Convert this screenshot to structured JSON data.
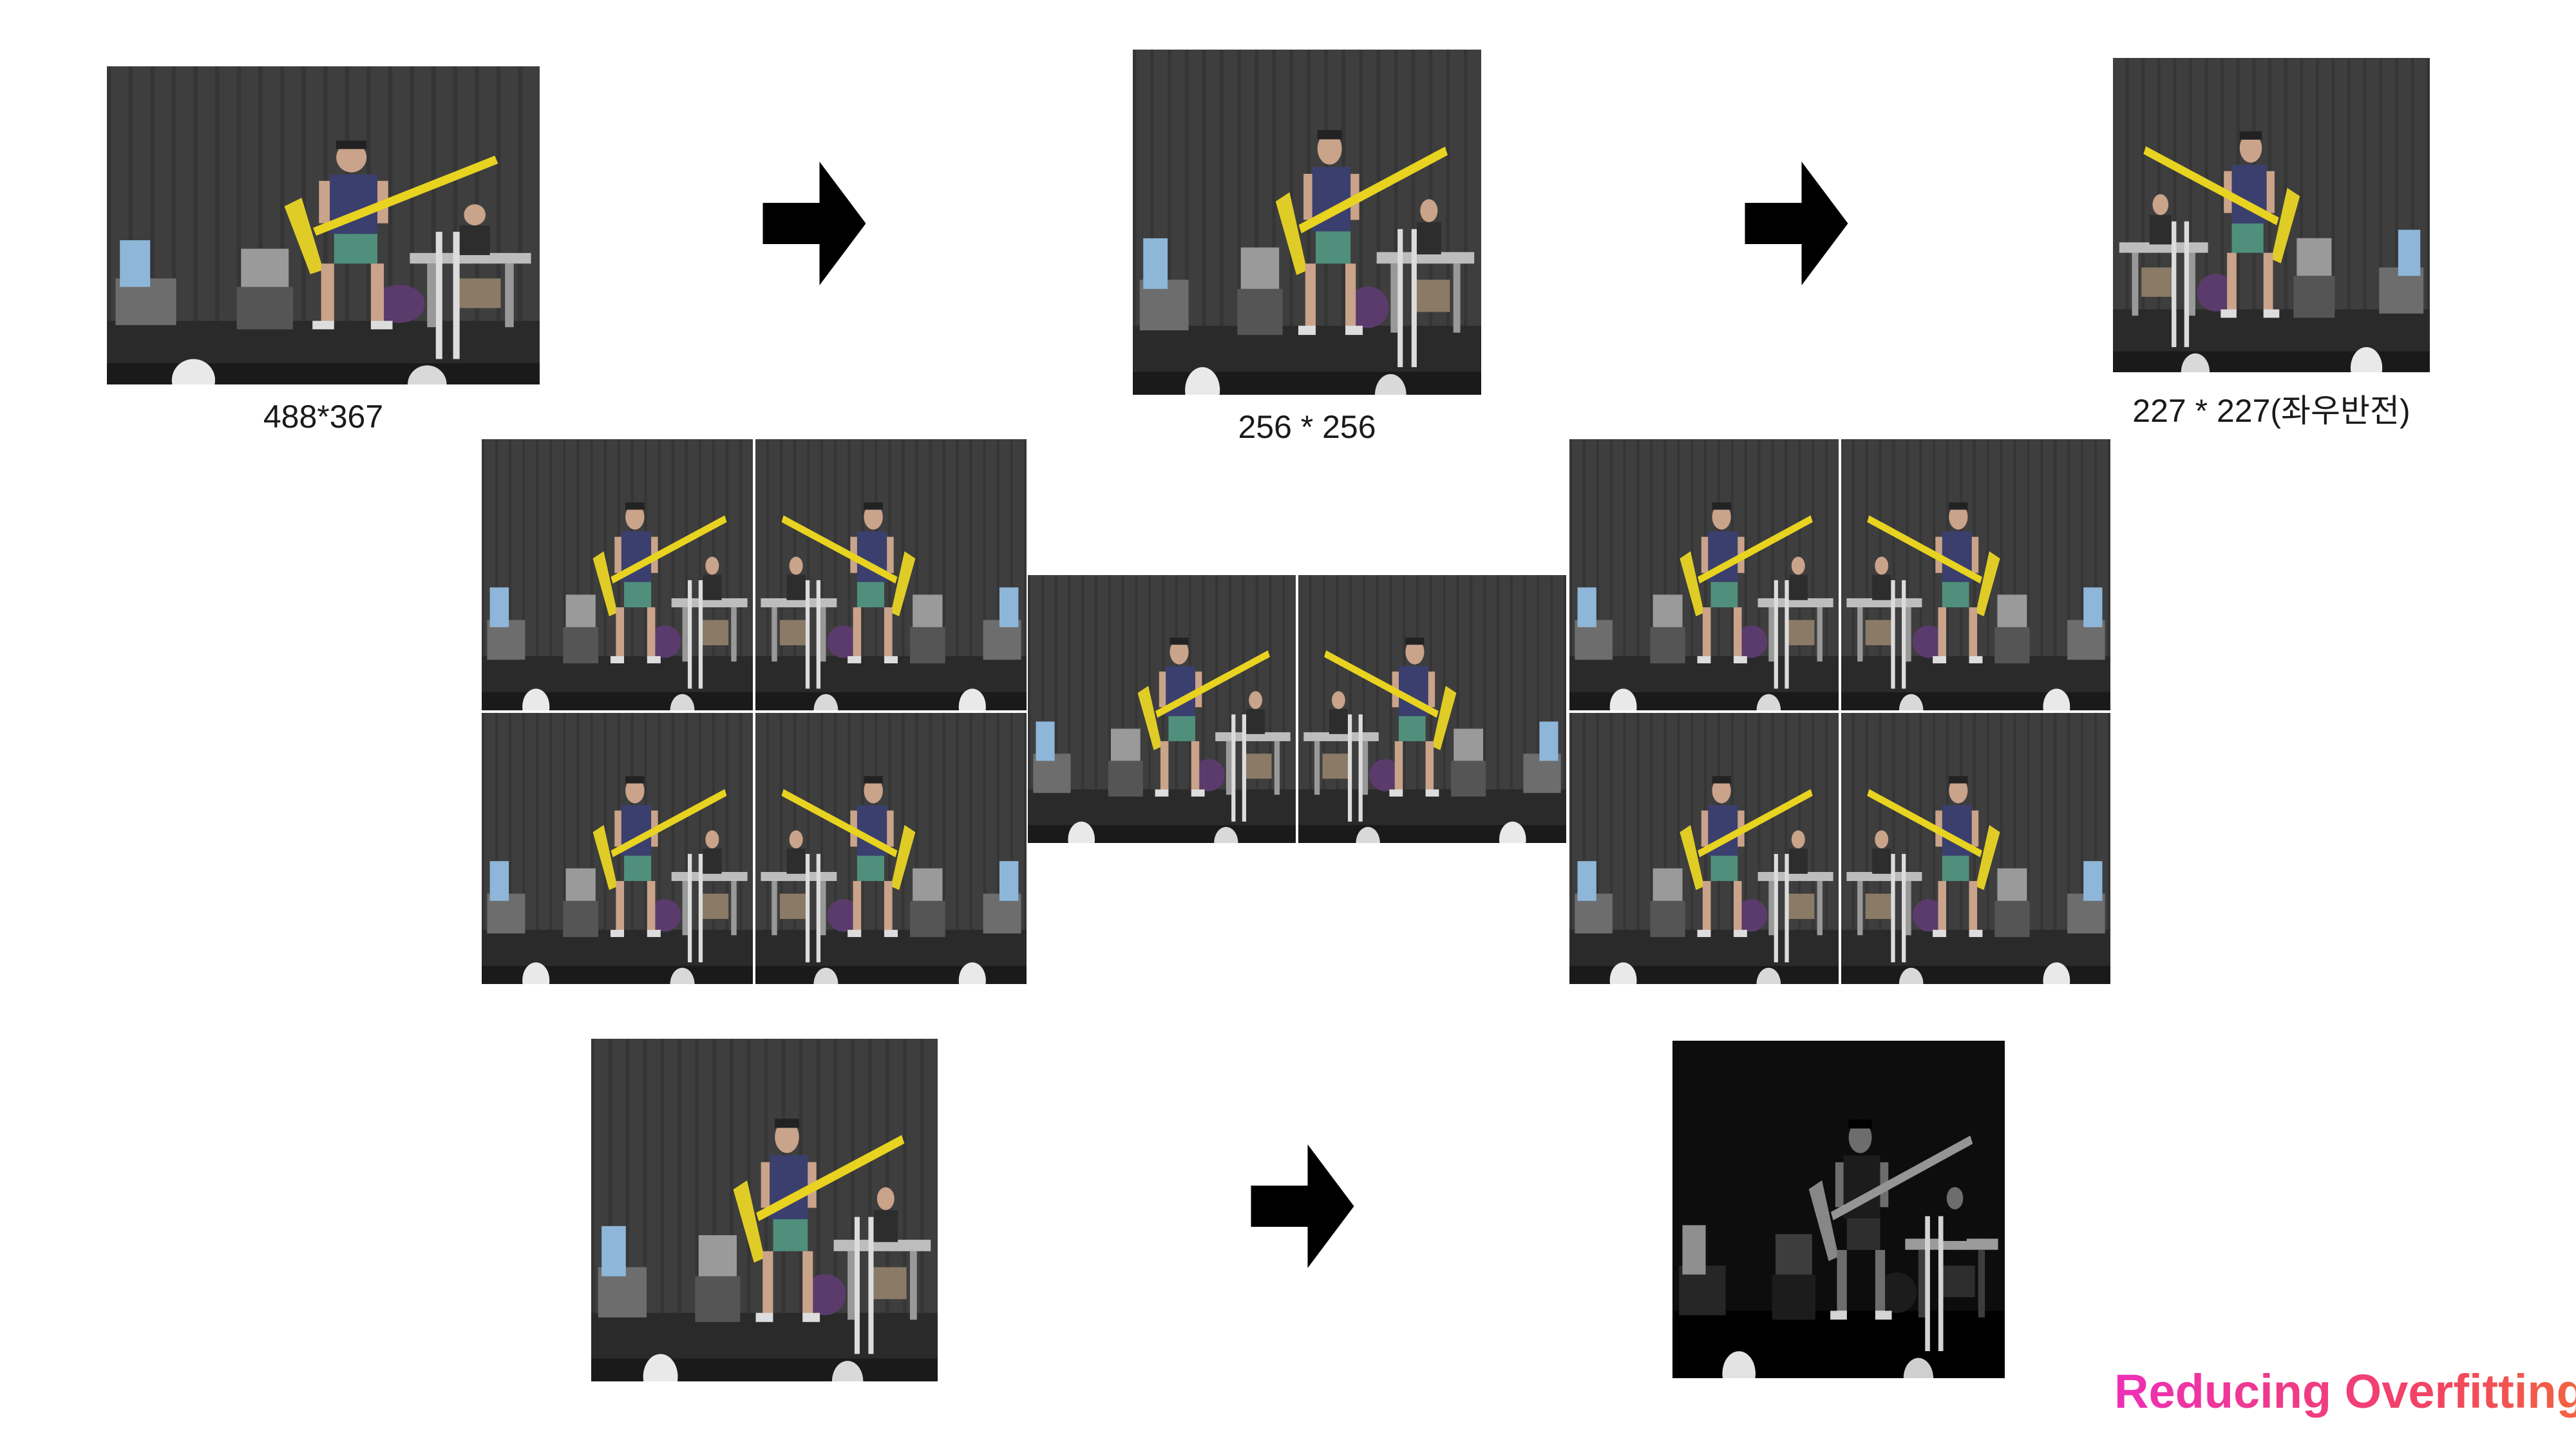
{
  "captions": {
    "original_size": "488*367",
    "resized": "256 * 256",
    "cropped_flipped": "227 * 227(좌우반전)"
  },
  "slide_title": "Reducing Overfitting",
  "colors": {
    "title_gradient_start": "#ee2fb7",
    "title_gradient_end": "#f26640",
    "stage_dark": "#3a3a3a",
    "shirt": "#3b3f6e",
    "shorts": "#4f8f7c",
    "pole": "#e8d321"
  },
  "icons": {
    "arrow": "right-arrow-icon",
    "photo": "concert-stage-photo"
  }
}
